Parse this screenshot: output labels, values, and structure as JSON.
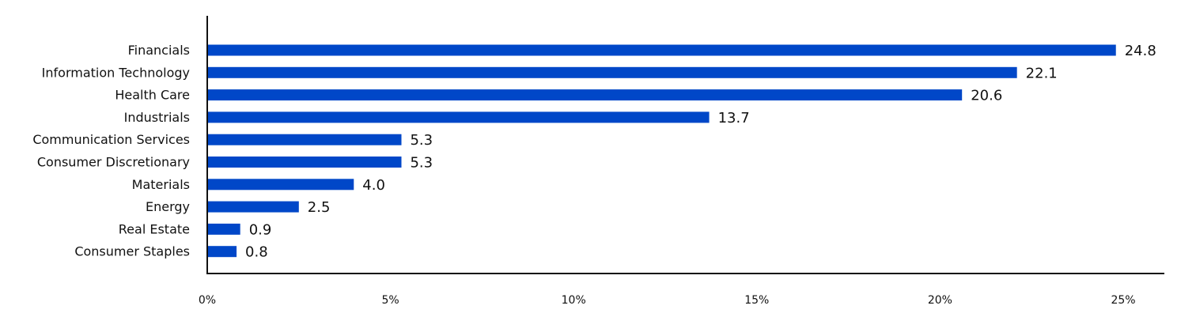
{
  "chart_data": {
    "type": "bar",
    "orientation": "horizontal",
    "title": "",
    "xlabel": "",
    "ylabel": "",
    "categories": [
      "Financials",
      "Information Technology",
      "Health Care",
      "Industrials",
      "Communication Services",
      "Consumer Discretionary",
      "Materials",
      "Energy",
      "Real Estate",
      "Consumer Staples"
    ],
    "values": [
      24.8,
      22.1,
      20.6,
      13.7,
      5.3,
      5.3,
      4.0,
      2.5,
      0.9,
      0.8
    ],
    "value_labels": [
      "24.8",
      "22.1",
      "20.6",
      "13.7",
      "5.3",
      "5.3",
      "4.0",
      "2.5",
      "0.9",
      "0.8"
    ],
    "xlim": [
      0,
      25
    ],
    "x_ticks": [
      0,
      5,
      10,
      15,
      20,
      25
    ],
    "x_tick_labels": [
      "0%",
      "5%",
      "10%",
      "15%",
      "20%",
      "25%"
    ],
    "grid": false,
    "legend": "none",
    "bar_color": "#0047c8"
  }
}
